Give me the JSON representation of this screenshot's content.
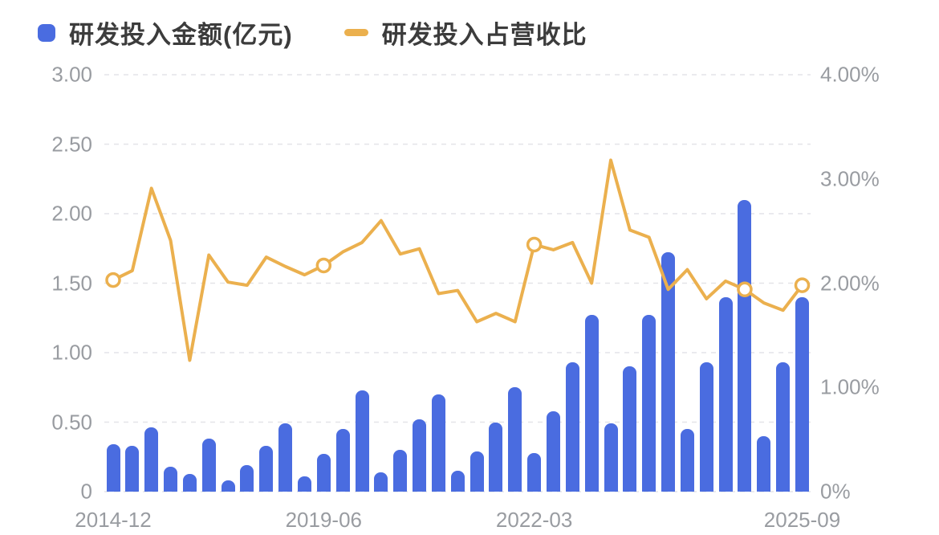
{
  "legend": {
    "items": [
      {
        "label": "研发投入金额(亿元)",
        "series": "bar",
        "color": "#4a6ce0"
      },
      {
        "label": "研发投入占营收比",
        "series": "line",
        "color": "#ebb04e"
      }
    ]
  },
  "chart_data": {
    "type": "combo-bar-line",
    "bar_series": {
      "name": "研发投入金额(亿元)",
      "type": "bar",
      "axis": "left",
      "unit": "亿元",
      "color": "#4a6ce0",
      "values": [
        0.34,
        0.33,
        0.46,
        0.18,
        0.13,
        0.38,
        0.08,
        0.19,
        0.33,
        0.49,
        0.11,
        0.27,
        0.45,
        0.73,
        0.14,
        0.3,
        0.52,
        0.7,
        0.15,
        0.29,
        0.5,
        0.75,
        0.28,
        0.58,
        0.93,
        1.27,
        0.49,
        0.9,
        1.27,
        1.72,
        0.45,
        0.93,
        1.4,
        2.1,
        0.4,
        0.93,
        1.4
      ]
    },
    "line_series": {
      "name": "研发投入占营收比",
      "type": "line",
      "axis": "right",
      "unit": "%",
      "color": "#ebb04e",
      "values": [
        2.03,
        2.12,
        2.91,
        2.41,
        1.26,
        2.27,
        2.01,
        1.98,
        2.25,
        2.16,
        2.08,
        2.17,
        2.3,
        2.39,
        2.6,
        2.28,
        2.33,
        1.9,
        1.93,
        1.63,
        1.71,
        1.63,
        2.37,
        2.32,
        2.39,
        2.0,
        3.18,
        2.51,
        2.44,
        1.94,
        2.13,
        1.85,
        2.02,
        1.94,
        1.81,
        1.74,
        1.98
      ],
      "marker_indices": [
        0,
        11,
        22,
        33,
        36
      ]
    },
    "x_axis": {
      "tick_labels": [
        {
          "index": 0,
          "label": "2014-12"
        },
        {
          "index": 11,
          "label": "2019-06"
        },
        {
          "index": 22,
          "label": "2022-03"
        },
        {
          "index": 36,
          "label": "2025-09"
        }
      ]
    },
    "y_axis_left": {
      "range": [
        0,
        3
      ],
      "ticks": [
        {
          "value": 0,
          "label": "0"
        },
        {
          "value": 0.5,
          "label": "0.50"
        },
        {
          "value": 1,
          "label": "1.00"
        },
        {
          "value": 1.5,
          "label": "1.50"
        },
        {
          "value": 2,
          "label": "2.00"
        },
        {
          "value": 2.5,
          "label": "2.50"
        },
        {
          "value": 3,
          "label": "3.00"
        }
      ]
    },
    "y_axis_right": {
      "range": [
        0,
        4
      ],
      "ticks": [
        {
          "value": 0,
          "label": "0%"
        },
        {
          "value": 1,
          "label": "1.00%"
        },
        {
          "value": 2,
          "label": "2.00%"
        },
        {
          "value": 3,
          "label": "3.00%"
        },
        {
          "value": 4,
          "label": "4.00%"
        }
      ]
    },
    "grid": {
      "horizontal_dashed_at_left_ticks": true
    }
  },
  "colors": {
    "bar": "#4a6ce0",
    "line": "#ebb04e",
    "grid": "#e4e4e8",
    "tick_text": "#999ca1",
    "legend_text": "#3c3c3c",
    "background": "#ffffff"
  }
}
